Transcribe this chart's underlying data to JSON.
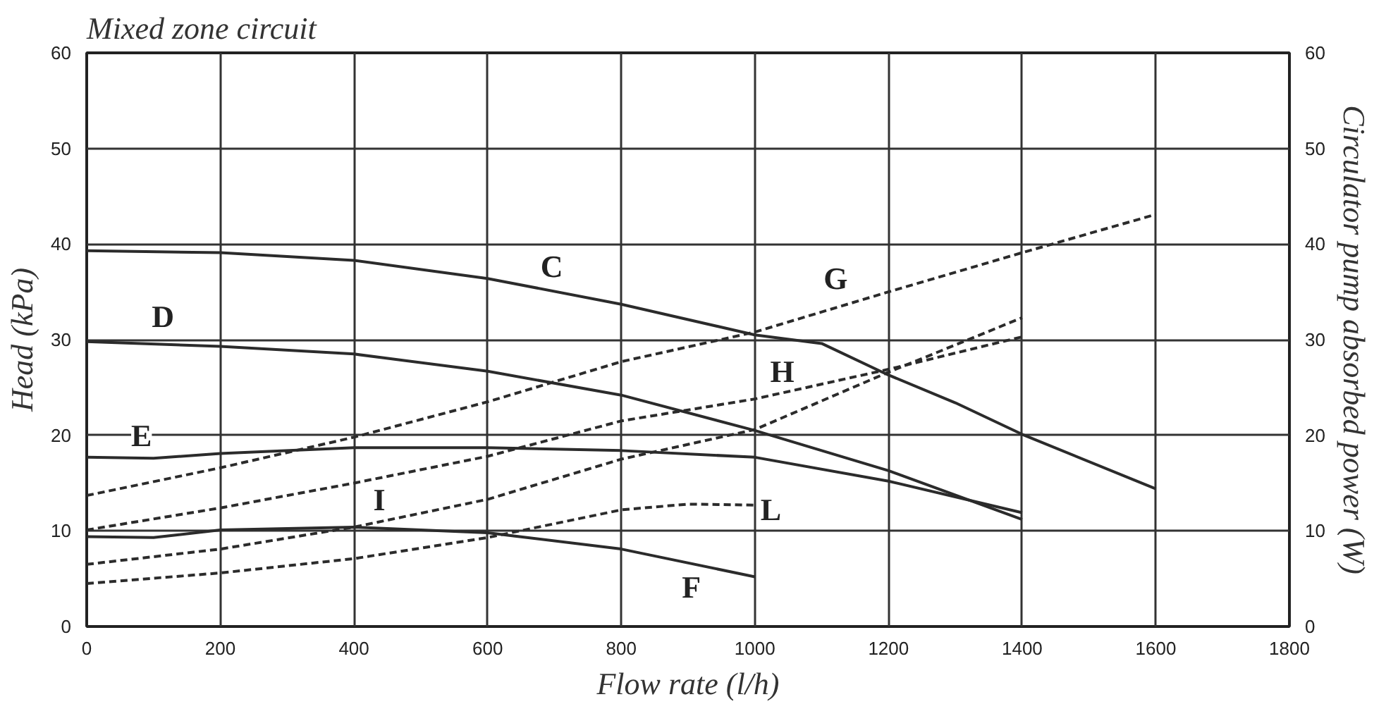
{
  "chart_data": {
    "type": "line",
    "title": "Mixed zone circuit",
    "xlabel": "Flow rate (l/h)",
    "ylabel": "Head (kPa)",
    "y2label": "Circulator pump absorbed power (W)",
    "xlim": [
      0,
      1800
    ],
    "xticks": [
      0,
      200,
      400,
      600,
      800,
      1000,
      1200,
      1400,
      1600,
      1800
    ],
    "ylim": [
      0,
      60
    ],
    "yticks": [
      0,
      10,
      20,
      30,
      40,
      50,
      60
    ],
    "y2lim": [
      0,
      60
    ],
    "y2ticks": [
      0,
      10,
      20,
      30,
      40,
      50,
      60
    ],
    "grid": true,
    "series": [
      {
        "color": "#2b2b2b",
        "line_style": "solid",
        "x": [
          0,
          200,
          400,
          600,
          800,
          1000,
          1100,
          1200,
          1300,
          1400,
          1600
        ],
        "values": [
          39.3,
          39.1,
          38.3,
          36.4,
          33.7,
          30.5,
          29.6,
          26.3,
          23.4,
          20.1,
          14.4
        ]
      },
      {
        "color": "#2b2b2b",
        "line_style": "solid",
        "x": [
          0,
          200,
          400,
          600,
          800,
          1000,
          1200,
          1400
        ],
        "values": [
          29.8,
          29.3,
          28.5,
          26.7,
          24.2,
          20.5,
          16.3,
          11.2
        ]
      },
      {
        "color": "#2b2b2b",
        "line_style": "solid",
        "x": [
          0,
          100,
          200,
          400,
          600,
          800,
          1000,
          1200,
          1400
        ],
        "values": [
          17.7,
          17.6,
          18.1,
          18.7,
          18.7,
          18.4,
          17.7,
          15.2,
          11.9
        ]
      },
      {
        "color": "#2b2b2b",
        "line_style": "solid",
        "x": [
          0,
          100,
          200,
          400,
          600,
          800,
          1000
        ],
        "values": [
          9.4,
          9.3,
          10.1,
          10.4,
          9.8,
          8.1,
          5.2
        ]
      },
      {
        "color": "#2b2b2b",
        "line_style": "dashed",
        "x": [
          0,
          200,
          400,
          600,
          800,
          1000,
          1200,
          1400,
          1600
        ],
        "values": [
          13.7,
          16.6,
          19.8,
          23.5,
          27.7,
          30.8,
          35.0,
          39.1,
          43.1
        ]
      },
      {
        "color": "#2b2b2b",
        "line_style": "dashed",
        "x": [
          0,
          200,
          400,
          600,
          800,
          1000,
          1200,
          1400
        ],
        "values": [
          10.1,
          12.4,
          15.0,
          17.8,
          21.5,
          23.8,
          26.9,
          30.3
        ]
      },
      {
        "color": "#2b2b2b",
        "line_style": "dashed",
        "x": [
          0,
          200,
          400,
          600,
          800,
          1000,
          1200,
          1400
        ],
        "values": [
          6.5,
          8.1,
          10.4,
          13.3,
          17.5,
          20.6,
          26.6,
          32.3
        ]
      },
      {
        "color": "#2b2b2b",
        "line_style": "dashed",
        "x": [
          0,
          200,
          400,
          600,
          800,
          900,
          1000
        ],
        "values": [
          4.5,
          5.6,
          7.1,
          9.3,
          12.2,
          12.8,
          12.7
        ]
      }
    ],
    "annotations": [
      {
        "text": "C",
        "x": 696,
        "y": 37.7
      },
      {
        "text": "D",
        "x": 114,
        "y": 32.4
      },
      {
        "text": "E",
        "x": 82,
        "y": 20
      },
      {
        "text": "F",
        "x": 905,
        "y": 4.1
      },
      {
        "text": "G",
        "x": 1121,
        "y": 36.4
      },
      {
        "text": "H",
        "x": 1041,
        "y": 26.7
      },
      {
        "text": "I",
        "x": 438,
        "y": 13.3
      },
      {
        "text": "L",
        "x": 1024,
        "y": 12.2
      }
    ]
  }
}
